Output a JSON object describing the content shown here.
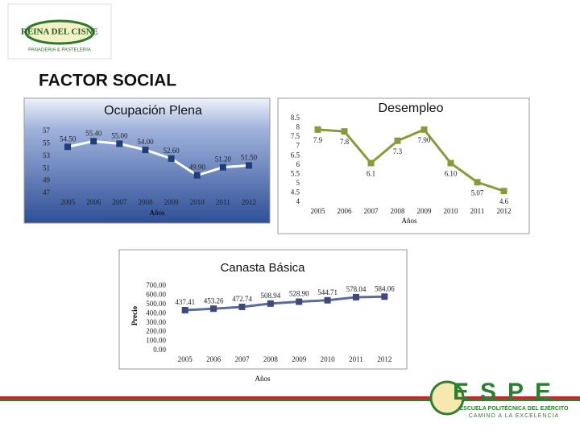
{
  "title": "FACTOR SOCIAL",
  "logo": {
    "name": "REINA DEL CISNE",
    "tagline": "PANADERIA & PASTELERIA"
  },
  "footer_logo": {
    "name": "ESPE",
    "subtitle": "ESCUELA POLITÉCNICA DEL EJÉRCITO",
    "motto": "CAMINO A LA EXCELENCIA"
  },
  "chart_data": [
    {
      "type": "line",
      "title": "Ocupación Plena",
      "xlabel": "Años",
      "categories": [
        "2005",
        "2006",
        "2007",
        "2008",
        "2009",
        "2010",
        "2011",
        "2012"
      ],
      "values": [
        54.5,
        55.4,
        55.0,
        54.0,
        52.6,
        49.9,
        51.2,
        51.5
      ],
      "value_labels": [
        "54.50",
        "55.40",
        "55.00",
        "54.00",
        "52.60",
        "49.90",
        "51.20",
        "51.50"
      ],
      "color": "#ffffff",
      "marker_color": "#1f3d7a",
      "ylim": [
        47,
        57
      ],
      "yticks": [
        47,
        49,
        51,
        53,
        55,
        57
      ]
    },
    {
      "type": "line",
      "title": "Desempleo",
      "xlabel": "Años",
      "categories": [
        "2005",
        "2006",
        "2007",
        "2008",
        "2009",
        "2010",
        "2011",
        "2012"
      ],
      "values": [
        7.9,
        7.8,
        6.1,
        7.3,
        7.9,
        6.1,
        5.07,
        4.6
      ],
      "value_labels": [
        "7.9",
        "7.8",
        "6.1",
        "7.3",
        "7.90",
        "6.10",
        "5.07",
        "4.6"
      ],
      "color": "#8a9a3a",
      "marker_color": "#8a9a3a",
      "ylim": [
        4,
        8.5
      ],
      "yticks": [
        4,
        4.5,
        5,
        5.5,
        6,
        6.5,
        7,
        7.5,
        8,
        8.5
      ]
    },
    {
      "type": "line",
      "title": "Canasta Básica",
      "xlabel": "Años",
      "ylabel": "Precio",
      "categories": [
        "2005",
        "2006",
        "2007",
        "2008",
        "2009",
        "2010",
        "2011",
        "2012"
      ],
      "values": [
        437.41,
        453.26,
        472.74,
        508.94,
        528.9,
        544.71,
        578.04,
        584.06
      ],
      "value_labels": [
        "437.41",
        "453.26",
        "472.74",
        "508.94",
        "528.90",
        "544.71",
        "578.04",
        "584.06"
      ],
      "color": "#5b6b9a",
      "marker_color": "#3d4a7a",
      "ylim": [
        0,
        700
      ],
      "yticks": [
        {
          "value": 0,
          "label": "0.00"
        },
        {
          "value": 100,
          "label": "100.00"
        },
        {
          "value": 200,
          "label": "200.00"
        },
        {
          "value": 300,
          "label": "300.00"
        },
        {
          "value": 400,
          "label": "400.00"
        },
        {
          "value": 500,
          "label": "500.00"
        },
        {
          "value": 600,
          "label": "600.00"
        },
        {
          "value": 700,
          "label": "700.00"
        }
      ]
    }
  ]
}
